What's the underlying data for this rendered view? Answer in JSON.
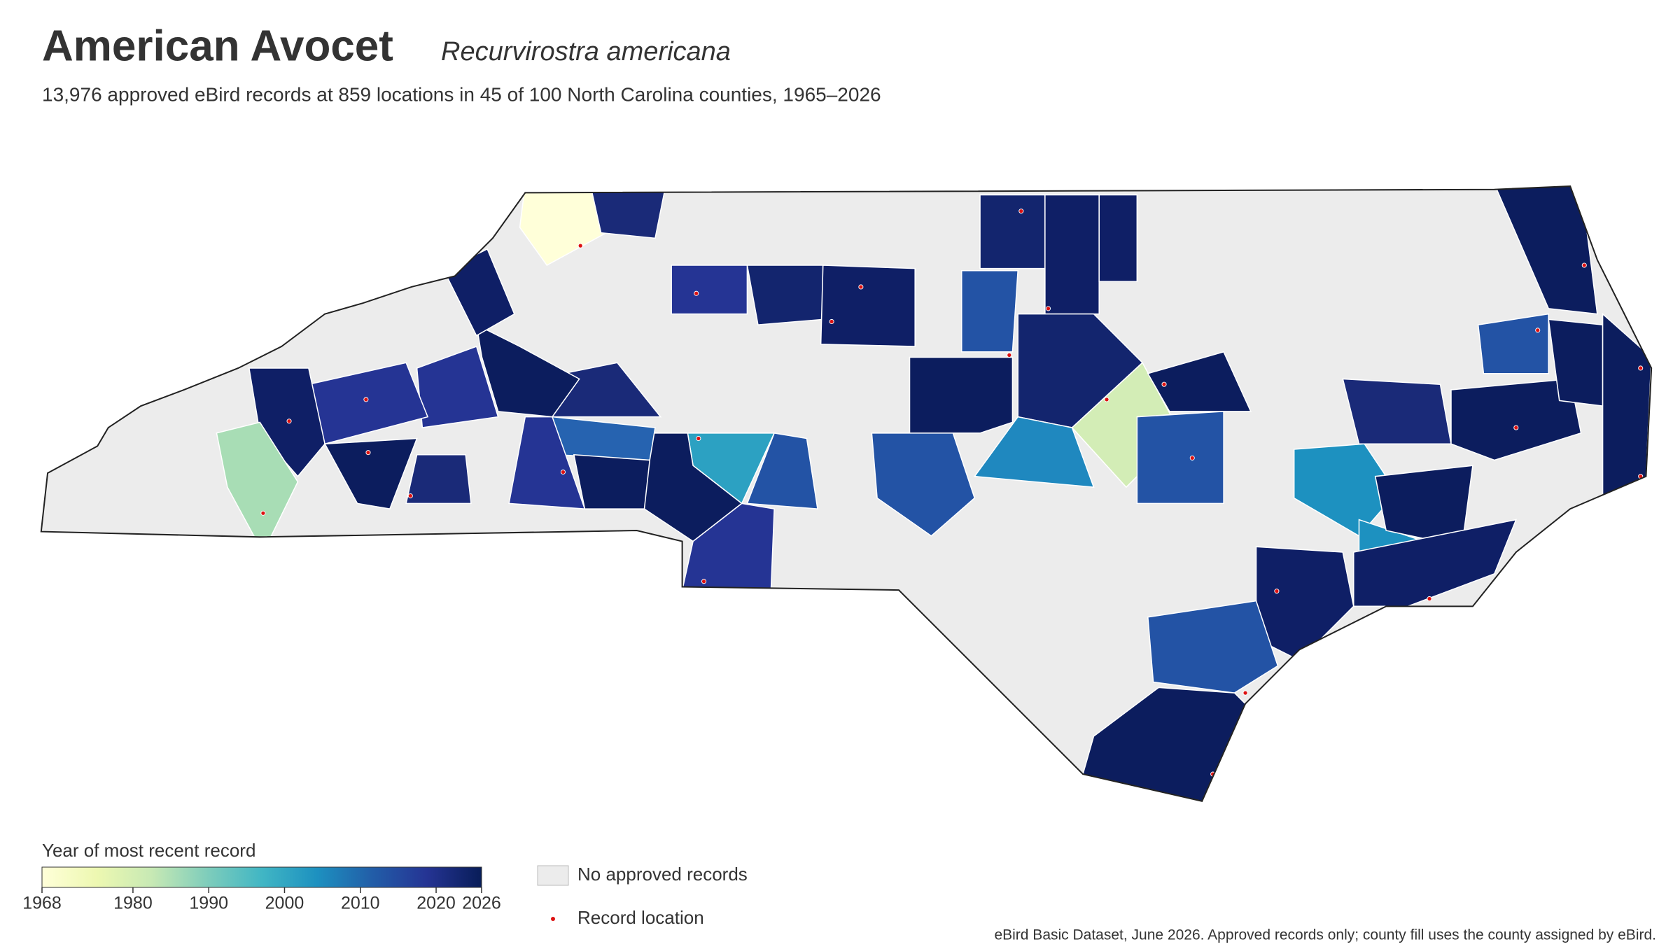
{
  "header": {
    "title": "American Avocet",
    "species": "Recurvirostra americana",
    "subtitle": "13,976 approved eBird records at 859 locations in 45 of 100 North Carolina counties, 1965–2026"
  },
  "legend": {
    "colorbar_title": "Year of most recent record",
    "range": [
      1968,
      2026
    ],
    "ticks": [
      1968,
      1980,
      1990,
      2000,
      2010,
      2020,
      2026
    ],
    "colormap": [
      "#ffffd9",
      "#edf8b1",
      "#c7e9b4",
      "#7fcdbb",
      "#41b6c4",
      "#1d91c0",
      "#225ea8",
      "#253494",
      "#081d58"
    ],
    "no_records_label": "No approved records",
    "record_location_label": "Record location"
  },
  "source": "eBird Basic Dataset, June 2026. Approved records only; county fill uses the county assigned by eBird."
}
